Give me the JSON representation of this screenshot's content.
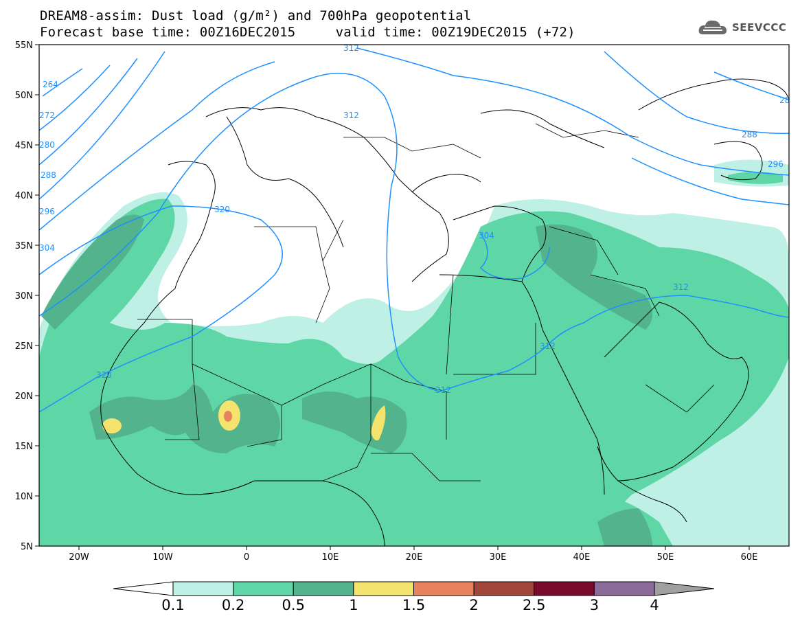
{
  "header": {
    "title_line1": "DREAM8-assim: Dust load (g/m²) and 700hPa geopotential",
    "title_line2": "Forecast base time: 00Z16DEC2015     valid time: 00Z19DEC2015 (+72)"
  },
  "logo": {
    "text": "SEEVCCC",
    "icon": "cloud-icon"
  },
  "map": {
    "lat_labels": [
      "55N",
      "50N",
      "45N",
      "40N",
      "35N",
      "30N",
      "25N",
      "20N",
      "15N",
      "10N",
      "5N"
    ],
    "lon_labels": [
      "20W",
      "10W",
      "0",
      "10E",
      "20E",
      "30E",
      "40E",
      "50E",
      "60E"
    ],
    "geopotential_labels": [
      "264",
      "272",
      "280",
      "288",
      "296",
      "304",
      "312",
      "320",
      "312",
      "304",
      "312",
      "312",
      "320",
      "312",
      "288",
      "296",
      "28"
    ],
    "colors": {
      "contour": "#1e90ff",
      "border": "#000000",
      "dust_0_1": "#bff0e6",
      "dust_0_2": "#5ed6a6",
      "dust_0_5": "#52b38c",
      "dust_1": "#f4e46e",
      "dust_1_5": "#e8825e"
    }
  },
  "colorbar": {
    "labels": [
      "0.1",
      "0.2",
      "0.5",
      "1",
      "1.5",
      "2",
      "2.5",
      "3",
      "4"
    ],
    "colors": [
      "#ffffff",
      "#bff0e6",
      "#5ed6a6",
      "#52b38c",
      "#f4e46e",
      "#e8825e",
      "#a2453a",
      "#7a0a2e",
      "#8c6a9a",
      "#a0a0a0"
    ]
  }
}
